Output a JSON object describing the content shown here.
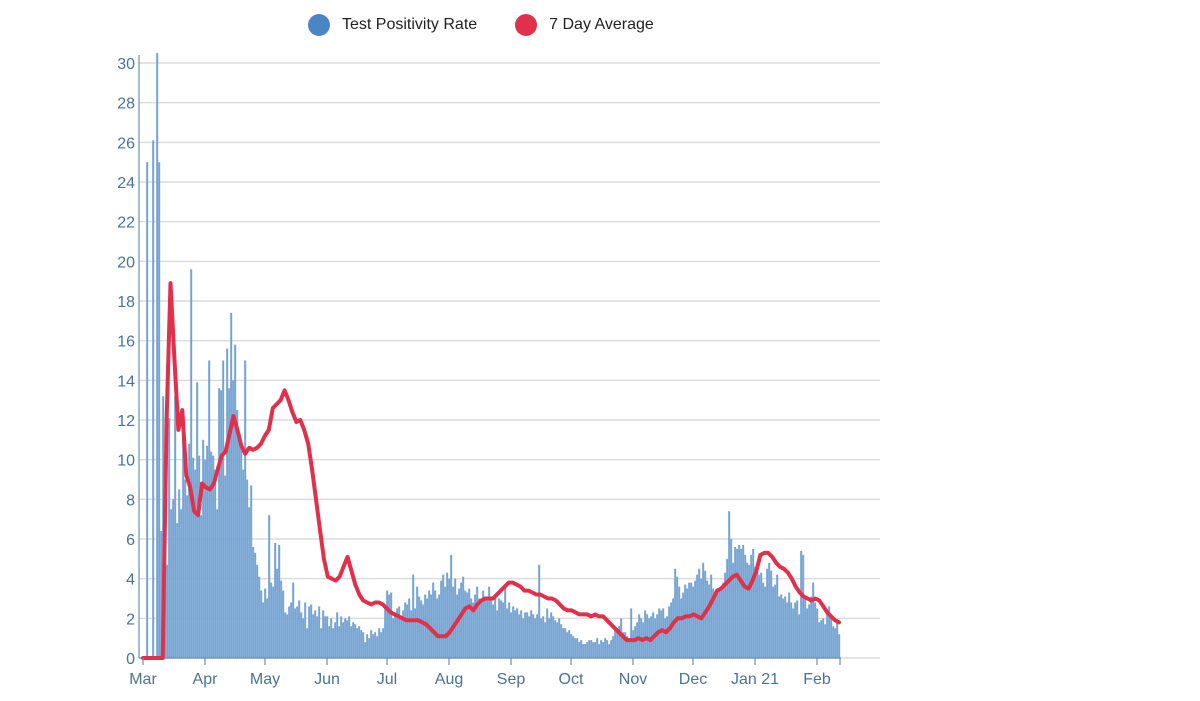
{
  "legend": [
    {
      "label": "Test Positivity Rate",
      "color": "#4a86c5"
    },
    {
      "label": "7 Day Average",
      "color": "#e0304a"
    }
  ],
  "chart_data": {
    "type": "bar",
    "title": "",
    "xlabel": "",
    "ylabel": "",
    "ylim": [
      0,
      30
    ],
    "grid": true,
    "legend_position": "top-center",
    "start_date": "2020-03-01",
    "y_ticks": [
      "0",
      "2",
      "4",
      "6",
      "8",
      "10",
      "12",
      "14",
      "16",
      "18",
      "20",
      "22",
      "24",
      "26",
      "28",
      "30"
    ],
    "x_ticks": [
      {
        "label": "Mar",
        "day": 0
      },
      {
        "label": "Apr",
        "day": 31
      },
      {
        "label": "May",
        "day": 61
      },
      {
        "label": "Jun",
        "day": 92
      },
      {
        "label": "Jul",
        "day": 122
      },
      {
        "label": "Aug",
        "day": 153
      },
      {
        "label": "Sep",
        "day": 184
      },
      {
        "label": "Oct",
        "day": 214
      },
      {
        "label": "Nov",
        "day": 245
      },
      {
        "label": "Dec",
        "day": 275
      },
      {
        "label": "Jan 21",
        "day": 306
      },
      {
        "label": "Feb",
        "day": 337
      }
    ],
    "series": [
      {
        "name": "Test Positivity Rate",
        "type": "bar",
        "color": "#7fabd8",
        "values": [
          0,
          0,
          25,
          0,
          0,
          26.1,
          0,
          30.5,
          25,
          6.4,
          13.2,
          7.8,
          4.7,
          12.1,
          7.5,
          8.0,
          13.2,
          6.8,
          8.5,
          7.5,
          11.8,
          9.0,
          8.2,
          10.8,
          19.6,
          10.1,
          9.5,
          13.9,
          10.2,
          7.2,
          11.0,
          10.0,
          10.7,
          15.0,
          10.4,
          10.2,
          9.5,
          7.5,
          13.6,
          13.5,
          15.0,
          9.2,
          15.6,
          13.6,
          17.4,
          14.0,
          15.8,
          12.5,
          11.0,
          10.8,
          9.5,
          15.0,
          9.0,
          7.6,
          8.7,
          5.6,
          5.3,
          4.7,
          4.1,
          3.4,
          2.8,
          3.5,
          3.0,
          7.2,
          3.8,
          3.6,
          5.8,
          4.5,
          5.7,
          3.9,
          3.4,
          2.3,
          2.2,
          2.6,
          2.8,
          3.8,
          2.5,
          2.6,
          2.9,
          2.3,
          2.0,
          2.8,
          1.5,
          2.6,
          2.7,
          2.2,
          2.4,
          2.1,
          2.6,
          1.5,
          2.4,
          2.1,
          2.1,
          1.6,
          2.0,
          1.5,
          1.8,
          2.3,
          1.6,
          2.1,
          1.8,
          2.0,
          1.9,
          2.1,
          1.6,
          1.8,
          1.7,
          1.5,
          1.6,
          1.4,
          1.3,
          0.8,
          1.2,
          1.0,
          1.4,
          1.2,
          1.3,
          1.1,
          1.5,
          1.3,
          1.5,
          2.6,
          3.4,
          3.2,
          3.3,
          2.0,
          2.3,
          2.5,
          2.6,
          2.0,
          2.4,
          2.8,
          2.7,
          3.0,
          2.4,
          4.2,
          2.5,
          3.6,
          3.1,
          2.9,
          2.7,
          3.2,
          3.0,
          3.4,
          3.2,
          3.8,
          3.4,
          3.0,
          3.2,
          3.9,
          4.2,
          3.6,
          4.3,
          4.0,
          5.2,
          3.6,
          4.0,
          3.2,
          3.5,
          3.8,
          4.1,
          3.4,
          3.3,
          3.5,
          3.0,
          2.8,
          3.2,
          3.6,
          3.0,
          2.9,
          3.4,
          3.1,
          3.0,
          3.6,
          3.0,
          2.7,
          3.2,
          2.4,
          3.0,
          2.9,
          2.8,
          3.5,
          2.5,
          2.8,
          2.3,
          2.6,
          2.4,
          2.5,
          2.2,
          2.4,
          2.0,
          2.3,
          2.3,
          2.1,
          2.4,
          2.2,
          2.0,
          2.2,
          4.7,
          2.0,
          2.1,
          1.8,
          2.5,
          2.0,
          2.3,
          2.1,
          1.9,
          1.8,
          2.0,
          1.7,
          1.5,
          1.5,
          1.3,
          1.4,
          1.2,
          1.1,
          1.0,
          1.0,
          0.8,
          0.9,
          0.7,
          0.7,
          0.8,
          0.9,
          0.9,
          0.8,
          0.8,
          1.0,
          0.7,
          0.9,
          0.8,
          1.0,
          0.9,
          0.7,
          0.9,
          1.1,
          1.4,
          1.5,
          1.6,
          2.0,
          1.3,
          1.3,
          1.1,
          1.0,
          2.5,
          1.4,
          1.6,
          1.8,
          2.2,
          2.0,
          1.8,
          2.4,
          2.2,
          2.0,
          2.1,
          2.3,
          2.0,
          2.2,
          2.5,
          2.4,
          2.5,
          2.0,
          2.1,
          2.6,
          2.8,
          3.0,
          4.5,
          4.1,
          3.6,
          3.0,
          3.3,
          3.7,
          3.5,
          3.8,
          3.8,
          3.6,
          3.9,
          4.2,
          4.5,
          4.0,
          4.8,
          4.4,
          3.9,
          3.7,
          4.2,
          3.5,
          3.1,
          3.3,
          3.4,
          3.6,
          3.8,
          4.3,
          5.0,
          7.4,
          6.0,
          4.8,
          5.6,
          5.5,
          5.7,
          5.5,
          5.7,
          5.2,
          4.8,
          4.7,
          5.2,
          5.5,
          4.6,
          4.4,
          4.2,
          4.3,
          3.8,
          3.6,
          4.5,
          4.8,
          4.4,
          3.6,
          3.7,
          4.2,
          3.1,
          3.2,
          3.0,
          3.1,
          2.8,
          3.3,
          2.8,
          2.5,
          2.8,
          2.9,
          2.2,
          5.4,
          5.2,
          3.0,
          2.5,
          2.7,
          3.1,
          3.8,
          2.8,
          2.5,
          1.8,
          1.9,
          2.0,
          1.7,
          2.2,
          2.6,
          2.1,
          1.6,
          1.5,
          1.8,
          1.2
        ]
      },
      {
        "name": "7 Day Average",
        "type": "line",
        "color": "#e0304a",
        "points": [
          [
            0,
            0
          ],
          [
            4,
            0
          ],
          [
            5,
            0
          ],
          [
            6,
            12
          ],
          [
            7,
            18.9
          ],
          [
            8,
            15.0
          ],
          [
            9,
            11.5
          ],
          [
            10,
            12.5
          ],
          [
            11,
            9.2
          ],
          [
            12,
            8.6
          ],
          [
            13,
            7.4
          ],
          [
            14,
            7.2
          ],
          [
            15,
            8.8
          ],
          [
            16,
            8.6
          ],
          [
            17,
            8.5
          ],
          [
            18,
            8.8
          ],
          [
            19,
            9.5
          ],
          [
            20,
            10.2
          ],
          [
            21,
            10.4
          ],
          [
            22,
            11.3
          ],
          [
            23,
            12.2
          ],
          [
            24,
            11.5
          ],
          [
            25,
            10.7
          ],
          [
            26,
            10.3
          ],
          [
            27,
            10.6
          ],
          [
            28,
            10.5
          ],
          [
            29,
            10.6
          ],
          [
            30,
            10.8
          ],
          [
            31,
            11.2
          ],
          [
            32,
            11.5
          ],
          [
            33,
            12.6
          ],
          [
            34,
            12.8
          ],
          [
            35,
            13.0
          ],
          [
            36,
            13.5
          ],
          [
            37,
            13.0
          ],
          [
            38,
            12.4
          ],
          [
            39,
            11.9
          ],
          [
            40,
            12.0
          ],
          [
            41,
            11.5
          ],
          [
            42,
            10.8
          ],
          [
            43,
            9.5
          ],
          [
            44,
            8.0
          ],
          [
            45,
            6.5
          ],
          [
            46,
            5.0
          ],
          [
            47,
            4.1
          ],
          [
            48,
            4.0
          ],
          [
            49,
            3.9
          ],
          [
            50,
            4.1
          ],
          [
            51,
            4.6
          ],
          [
            52,
            5.1
          ],
          [
            53,
            4.4
          ],
          [
            54,
            3.7
          ],
          [
            55,
            3.2
          ],
          [
            56,
            2.9
          ],
          [
            57,
            2.8
          ],
          [
            58,
            2.7
          ],
          [
            59,
            2.8
          ],
          [
            60,
            2.8
          ],
          [
            61,
            2.7
          ],
          [
            62,
            2.5
          ],
          [
            63,
            2.3
          ],
          [
            64,
            2.2
          ],
          [
            65,
            2.1
          ],
          [
            66,
            2.0
          ],
          [
            67,
            1.9
          ],
          [
            68,
            1.9
          ],
          [
            69,
            1.9
          ],
          [
            70,
            1.9
          ],
          [
            71,
            1.8
          ],
          [
            72,
            1.7
          ],
          [
            73,
            1.5
          ],
          [
            74,
            1.3
          ],
          [
            75,
            1.1
          ],
          [
            76,
            1.1
          ],
          [
            77,
            1.1
          ],
          [
            78,
            1.3
          ],
          [
            79,
            1.6
          ],
          [
            80,
            1.9
          ],
          [
            81,
            2.2
          ],
          [
            82,
            2.5
          ],
          [
            83,
            2.6
          ],
          [
            84,
            2.4
          ],
          [
            85,
            2.7
          ],
          [
            86,
            2.9
          ],
          [
            87,
            3.0
          ],
          [
            88,
            3.0
          ],
          [
            89,
            3.0
          ],
          [
            90,
            3.2
          ],
          [
            91,
            3.4
          ],
          [
            92,
            3.6
          ],
          [
            93,
            3.8
          ],
          [
            94,
            3.8
          ],
          [
            95,
            3.7
          ],
          [
            96,
            3.6
          ],
          [
            97,
            3.4
          ],
          [
            98,
            3.4
          ],
          [
            99,
            3.3
          ],
          [
            100,
            3.2
          ],
          [
            101,
            3.2
          ],
          [
            102,
            3.1
          ],
          [
            103,
            3.0
          ],
          [
            104,
            3.0
          ],
          [
            105,
            2.9
          ],
          [
            106,
            2.7
          ],
          [
            107,
            2.5
          ],
          [
            108,
            2.4
          ],
          [
            109,
            2.4
          ],
          [
            110,
            2.3
          ],
          [
            111,
            2.2
          ],
          [
            112,
            2.2
          ],
          [
            113,
            2.2
          ],
          [
            114,
            2.1
          ],
          [
            115,
            2.2
          ],
          [
            116,
            2.1
          ],
          [
            117,
            2.1
          ],
          [
            118,
            1.9
          ],
          [
            119,
            1.7
          ],
          [
            120,
            1.5
          ],
          [
            121,
            1.3
          ],
          [
            122,
            1.1
          ],
          [
            123,
            0.9
          ],
          [
            124,
            0.9
          ],
          [
            125,
            0.9
          ],
          [
            126,
            1.0
          ],
          [
            127,
            0.9
          ],
          [
            128,
            1.0
          ],
          [
            129,
            0.9
          ],
          [
            130,
            1.1
          ],
          [
            131,
            1.3
          ],
          [
            132,
            1.4
          ],
          [
            133,
            1.3
          ],
          [
            134,
            1.5
          ],
          [
            135,
            1.8
          ],
          [
            136,
            2.0
          ],
          [
            137,
            2.0
          ],
          [
            138,
            2.1
          ],
          [
            139,
            2.1
          ],
          [
            140,
            2.2
          ],
          [
            141,
            2.1
          ],
          [
            142,
            2.0
          ],
          [
            143,
            2.3
          ],
          [
            144,
            2.6
          ],
          [
            145,
            3.0
          ],
          [
            146,
            3.4
          ],
          [
            147,
            3.5
          ],
          [
            148,
            3.7
          ],
          [
            149,
            3.9
          ],
          [
            150,
            4.1
          ],
          [
            151,
            4.2
          ],
          [
            152,
            3.9
          ],
          [
            153,
            3.6
          ],
          [
            154,
            3.5
          ],
          [
            155,
            3.9
          ],
          [
            156,
            4.4
          ],
          [
            157,
            5.2
          ],
          [
            158,
            5.3
          ],
          [
            159,
            5.3
          ],
          [
            160,
            5.1
          ],
          [
            161,
            4.8
          ],
          [
            162,
            4.6
          ],
          [
            163,
            4.5
          ],
          [
            164,
            4.3
          ],
          [
            165,
            4.0
          ],
          [
            166,
            3.6
          ],
          [
            167,
            3.3
          ],
          [
            168,
            3.1
          ],
          [
            169,
            3.0
          ],
          [
            170,
            2.9
          ],
          [
            171,
            3.0
          ],
          [
            172,
            2.9
          ],
          [
            173,
            2.6
          ],
          [
            174,
            2.3
          ],
          [
            175,
            2.1
          ],
          [
            176,
            1.9
          ],
          [
            177,
            1.8
          ]
        ]
      }
    ]
  }
}
